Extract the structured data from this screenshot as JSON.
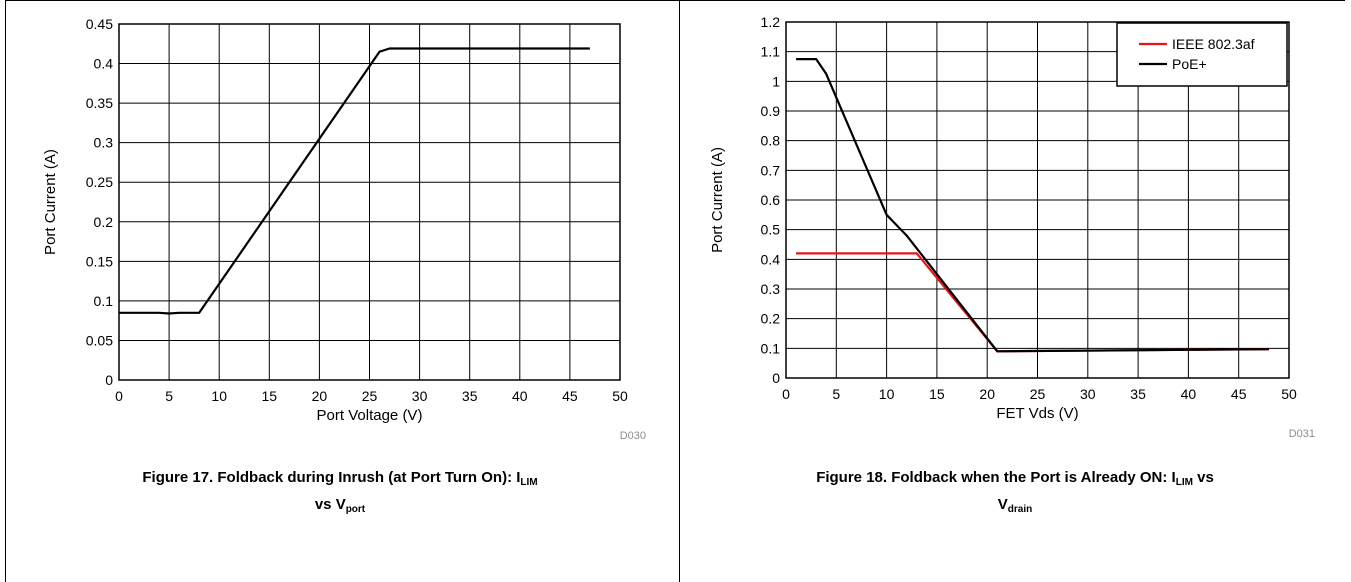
{
  "charts": [
    {
      "chart_data": {
        "type": "line",
        "xlabel": "Port Voltage (V)",
        "ylabel": "Port Current (A)",
        "xlim": [
          0,
          50
        ],
        "ylim": [
          0,
          0.45
        ],
        "xticks": [
          "0",
          "5",
          "10",
          "15",
          "20",
          "25",
          "30",
          "35",
          "40",
          "45",
          "50"
        ],
        "yticks": [
          "0",
          "0.05",
          "0.1",
          "0.15",
          "0.2",
          "0.25",
          "0.3",
          "0.35",
          "0.4",
          "0.45"
        ],
        "grid": true,
        "series": [
          {
            "color": "#000000",
            "x": [
              0,
              4,
              5,
              6,
              8,
              26,
              27,
              47
            ],
            "y": [
              0.085,
              0.085,
              0.084,
              0.085,
              0.085,
              0.415,
              0.419,
              0.419
            ]
          }
        ],
        "code": "D030"
      },
      "caption": {
        "prefix": "Figure 17. Foldback during Inrush (at Port Turn On): I",
        "sub1": "LIM",
        "line2": "vs V",
        "sub2": "port"
      }
    },
    {
      "chart_data": {
        "type": "line",
        "xlabel": "FET Vds (V)",
        "ylabel": "Port Current (A)",
        "xlim": [
          0,
          50
        ],
        "ylim": [
          0,
          1.2
        ],
        "xticks": [
          "0",
          "5",
          "10",
          "15",
          "20",
          "25",
          "30",
          "35",
          "40",
          "45",
          "50"
        ],
        "yticks": [
          "0",
          "0.1",
          "0.2",
          "0.3",
          "0.4",
          "0.5",
          "0.6",
          "0.7",
          "0.8",
          "0.9",
          "1",
          "1.1",
          "1.2"
        ],
        "grid": true,
        "legend": "top-right",
        "series": [
          {
            "name": "IEEE 802.3af",
            "color": "#e8141b",
            "x": [
              1,
              13,
              21,
              48
            ],
            "y": [
              0.42,
              0.42,
              0.09,
              0.097
            ]
          },
          {
            "name": "PoE+",
            "color": "#000000",
            "x": [
              1,
              3,
              4,
              10,
              12,
              21,
              48
            ],
            "y": [
              1.075,
              1.075,
              1.025,
              0.55,
              0.48,
              0.09,
              0.097
            ]
          }
        ],
        "code": "D031"
      },
      "caption": {
        "prefix": "Figure 18. Foldback when the Port is Already ON: I",
        "sub1": "LIM",
        "mid": " vs",
        "line2": "V",
        "sub2": "drain"
      }
    }
  ]
}
